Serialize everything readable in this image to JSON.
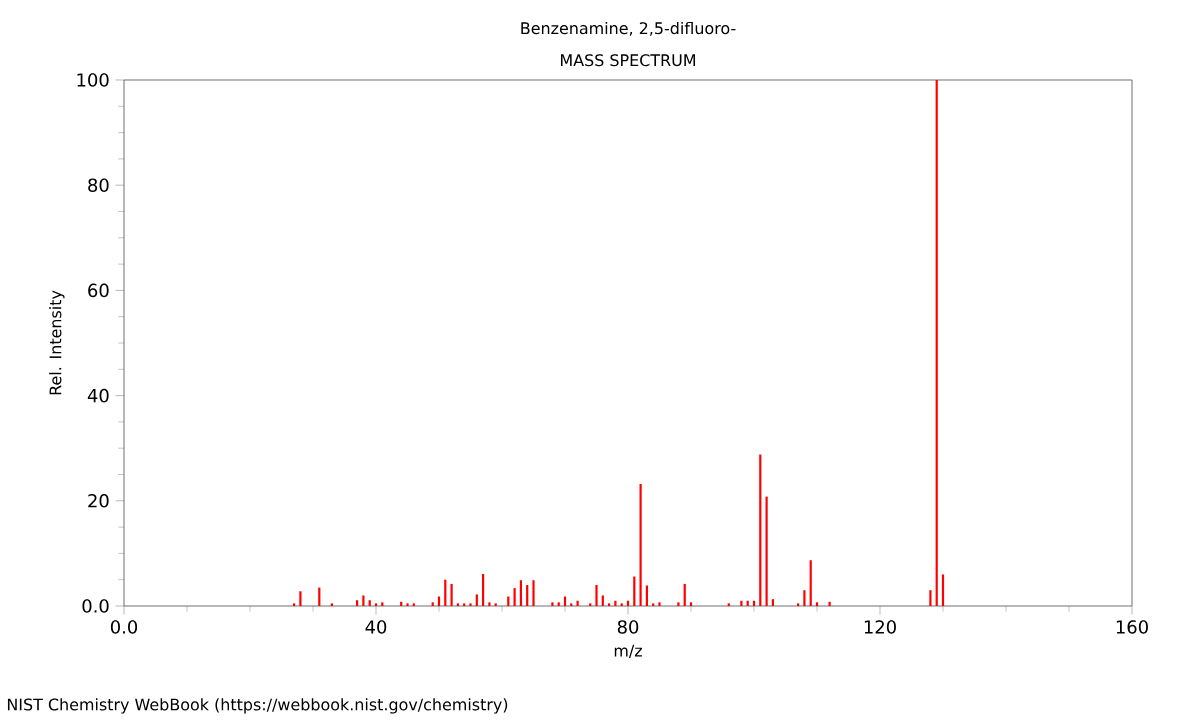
{
  "chart_data": {
    "type": "bar",
    "title": "Benzenamine, 2,5-difluoro-",
    "subtitle": "MASS SPECTRUM",
    "xlabel": "m/z",
    "ylabel": "Rel. Intensity",
    "x": [
      27,
      28,
      31,
      33,
      37,
      38,
      39,
      40,
      41,
      44,
      45,
      46,
      49,
      50,
      51,
      52,
      53,
      54,
      55,
      56,
      57,
      58,
      59,
      61,
      62,
      63,
      64,
      65,
      68,
      69,
      70,
      71,
      72,
      74,
      75,
      76,
      77,
      78,
      79,
      80,
      81,
      82,
      83,
      84,
      85,
      88,
      89,
      90,
      96,
      98,
      99,
      100,
      101,
      102,
      103,
      107,
      108,
      109,
      110,
      112,
      128,
      129,
      130
    ],
    "values": [
      0.5,
      2.8,
      3.5,
      0.5,
      1.1,
      2,
      1.1,
      0.5,
      0.7,
      0.8,
      0.5,
      0.5,
      0.7,
      1.8,
      5,
      4.2,
      0.5,
      0.5,
      0.5,
      2.2,
      6.1,
      0.7,
      0.5,
      1.8,
      3.4,
      4.9,
      4,
      4.9,
      0.7,
      0.7,
      1.8,
      0.5,
      1,
      0.5,
      4,
      2,
      0.5,
      1,
      0.5,
      1,
      5.6,
      23.2,
      3.9,
      0.5,
      0.7,
      0.7,
      4.2,
      0.7,
      0.5,
      1,
      1,
      1,
      28.8,
      20.8,
      1.3,
      0.5,
      3,
      8.7,
      0.7,
      0.8,
      3,
      100,
      6
    ],
    "color": "#ff0000",
    "xlim": [
      0,
      160
    ],
    "xticks": [
      {
        "value": 0,
        "label": "0.0"
      },
      40,
      80,
      120,
      160
    ],
    "ylim": [
      0,
      100
    ],
    "yticks": [
      {
        "value": 0,
        "label": "0.0"
      },
      20,
      40,
      60,
      80,
      100
    ],
    "annotations": [
      "NIST Chemistry WebBook (https://webbook.nist.gov/chemistry)"
    ]
  }
}
